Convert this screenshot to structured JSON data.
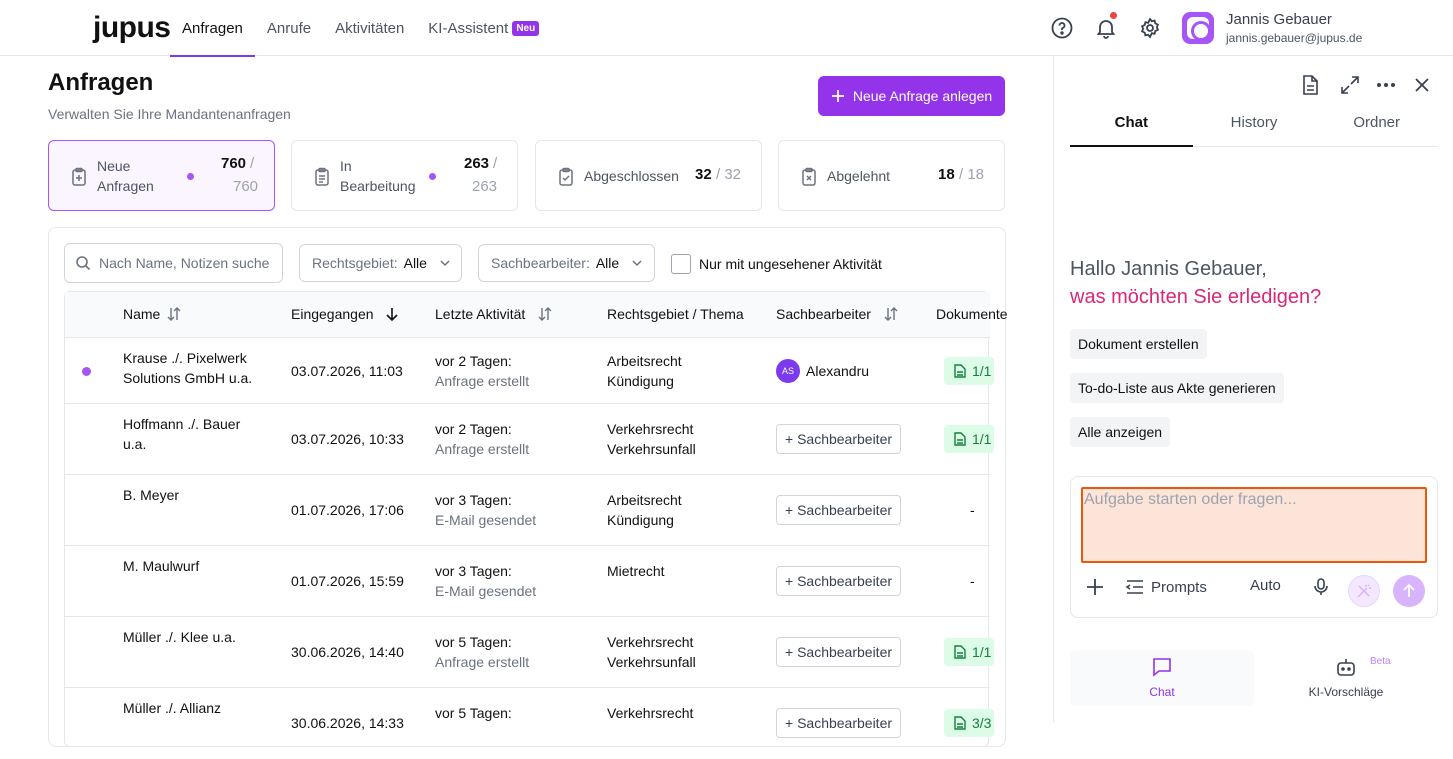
{
  "app": {
    "logo": "jupus"
  },
  "nav": {
    "items": [
      {
        "label": "Anfragen"
      },
      {
        "label": "Anrufe"
      },
      {
        "label": "Aktivitäten"
      },
      {
        "label": "KI-Assistent"
      }
    ],
    "badge": "Neu"
  },
  "user": {
    "name": "Jannis Gebauer",
    "email": "jannis.gebauer@jupus.de"
  },
  "header": {
    "title": "Anfragen",
    "subtitle": "Verwalten Sie Ihre Mandantenanfragen",
    "new_button": "Neue Anfrage anlegen"
  },
  "stats": [
    {
      "label1": "Neue",
      "label2": "Anfragen",
      "value": "760",
      "total": "/",
      "total2": "760"
    },
    {
      "label1": "In",
      "label2": "Bearbeitung",
      "value": "263",
      "total": "/",
      "total2": "263"
    },
    {
      "label": "Abgeschlossen",
      "value": "32",
      "total": "/ 32"
    },
    {
      "label": "Abgelehnt",
      "value": "18",
      "total": "/ 18"
    }
  ],
  "filters": {
    "search_placeholder": "Nach Name, Notizen suchen",
    "rechtsgebiet_label": "Rechtsgebiet:",
    "rechtsgebiet_value": "Alle",
    "sachbearbeiter_label": "Sachbearbeiter:",
    "sachbearbeiter_value": "Alle",
    "unseen_label": "Nur mit ungesehener Aktivität"
  },
  "table": {
    "columns": [
      "Name",
      "Eingegangen",
      "Letzte Aktivität",
      "Rechtsgebiet / Thema",
      "Sachbearbeiter",
      "Dokumente"
    ],
    "add_sb_label": "+ Sachbearbeiter",
    "rows": [
      {
        "name1": "Krause ./. Pixelwerk",
        "name2": "Solutions GmbH u.a.",
        "date": "03.07.2026, 11:03",
        "act1": "vor 2 Tagen:",
        "act2": "Anfrage erstellt",
        "rg1": "Arbeitsrecht",
        "rg2": "Kündigung",
        "sb_initials": "AS",
        "sb_name": "Alexandru",
        "docs": "1/1",
        "unseen": true
      },
      {
        "name1": "Hoffmann ./. Bauer",
        "name2": "u.a.",
        "date": "03.07.2026, 10:33",
        "act1": "vor 2 Tagen:",
        "act2": "Anfrage erstellt",
        "rg1": "Verkehrsrecht",
        "rg2": "Verkehrsunfall",
        "docs": "1/1"
      },
      {
        "name1": "B. Meyer",
        "name2": "",
        "date": "01.07.2026, 17:06",
        "act1": "vor 3 Tagen:",
        "act2": "E-Mail gesendet",
        "rg1": "Arbeitsrecht",
        "rg2": "Kündigung",
        "docs": "-"
      },
      {
        "name1": "M. Maulwurf",
        "name2": "",
        "date": "01.07.2026, 15:59",
        "act1": "vor 3 Tagen:",
        "act2": "E-Mail gesendet",
        "rg1": "Mietrecht",
        "rg2": "",
        "docs": "-"
      },
      {
        "name1": "Müller ./. Klee u.a.",
        "name2": "",
        "date": "30.06.2026, 14:40",
        "act1": "vor 5 Tagen:",
        "act2": "Anfrage erstellt",
        "rg1": "Verkehrsrecht",
        "rg2": "Verkehrsunfall",
        "docs": "1/1"
      },
      {
        "name1": "Müller ./. Allianz",
        "name2": "",
        "date": "30.06.2026, 14:33",
        "act1": "vor 5 Tagen:",
        "act2": "",
        "rg1": "Verkehrsrecht",
        "rg2": "",
        "docs": "3/3"
      }
    ]
  },
  "side": {
    "tabs": [
      "Chat",
      "History",
      "Ordner"
    ],
    "greeting1": "Hallo Jannis Gebauer,",
    "greeting2": "was möchten Sie erledigen?",
    "chips": [
      "Dokument erstellen",
      "To-do-Liste aus Akte generieren",
      "Alle anzeigen"
    ],
    "input_placeholder": "Aufgabe starten oder fragen...",
    "prompts_label": "Prompts",
    "mode_label": "Auto",
    "bottom": [
      {
        "label": "Chat"
      },
      {
        "label": "KI-Vorschläge",
        "badge": "Beta"
      }
    ]
  },
  "colors": {
    "accent": "#9333ea",
    "unseen_dot": "#a855f7",
    "doc_badge_bg": "#dcfce7",
    "greeting_pink": "#db2777"
  }
}
